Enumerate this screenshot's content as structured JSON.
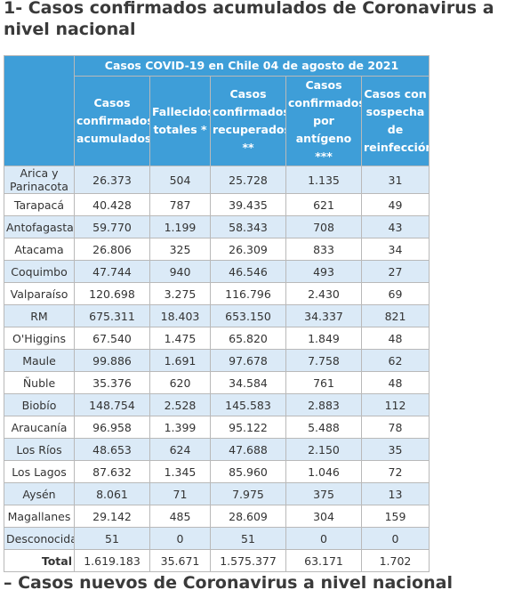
{
  "header": {
    "title": "1- Casos confirmados acumulados de Coronavirus a nivel nacional"
  },
  "table": {
    "group_header": "Casos COVID-19 en Chile 04 de agosto de 2021",
    "columns": [
      "Casos confirmados acumulados",
      "Fallecidos totales *",
      "Casos confirmados recuperados **",
      "Casos confirmados por antígeno ***",
      "Casos con sospecha de reinfección"
    ],
    "rows": [
      [
        "Arica y Parinacota",
        "26.373",
        "504",
        "25.728",
        "1.135",
        "31"
      ],
      [
        "Tarapacá",
        "40.428",
        "787",
        "39.435",
        "621",
        "49"
      ],
      [
        "Antofagasta",
        "59.770",
        "1.199",
        "58.343",
        "708",
        "43"
      ],
      [
        "Atacama",
        "26.806",
        "325",
        "26.309",
        "833",
        "34"
      ],
      [
        "Coquimbo",
        "47.744",
        "940",
        "46.546",
        "493",
        "27"
      ],
      [
        "Valparaíso",
        "120.698",
        "3.275",
        "116.796",
        "2.430",
        "69"
      ],
      [
        "RM",
        "675.311",
        "18.403",
        "653.150",
        "34.337",
        "821"
      ],
      [
        "O'Higgins",
        "67.540",
        "1.475",
        "65.820",
        "1.849",
        "48"
      ],
      [
        "Maule",
        "99.886",
        "1.691",
        "97.678",
        "7.758",
        "62"
      ],
      [
        "Ñuble",
        "35.376",
        "620",
        "34.584",
        "761",
        "48"
      ],
      [
        "Biobío",
        "148.754",
        "2.528",
        "145.583",
        "2.883",
        "112"
      ],
      [
        "Araucanía",
        "96.958",
        "1.399",
        "95.122",
        "5.488",
        "78"
      ],
      [
        "Los Ríos",
        "48.653",
        "624",
        "47.688",
        "2.150",
        "35"
      ],
      [
        "Los Lagos",
        "87.632",
        "1.345",
        "85.960",
        "1.046",
        "72"
      ],
      [
        "Aysén",
        "8.061",
        "71",
        "7.975",
        "375",
        "13"
      ],
      [
        "Magallanes",
        "29.142",
        "485",
        "28.609",
        "304",
        "159"
      ],
      [
        "Desconocida",
        "51",
        "0",
        "51",
        "0",
        "0"
      ]
    ],
    "total": [
      "Total",
      "1.619.183",
      "35.671",
      "1.575.377",
      "63.171",
      "1.702"
    ]
  },
  "footer": {
    "title": "– Casos nuevos de Coronavirus a nivel nacional"
  }
}
